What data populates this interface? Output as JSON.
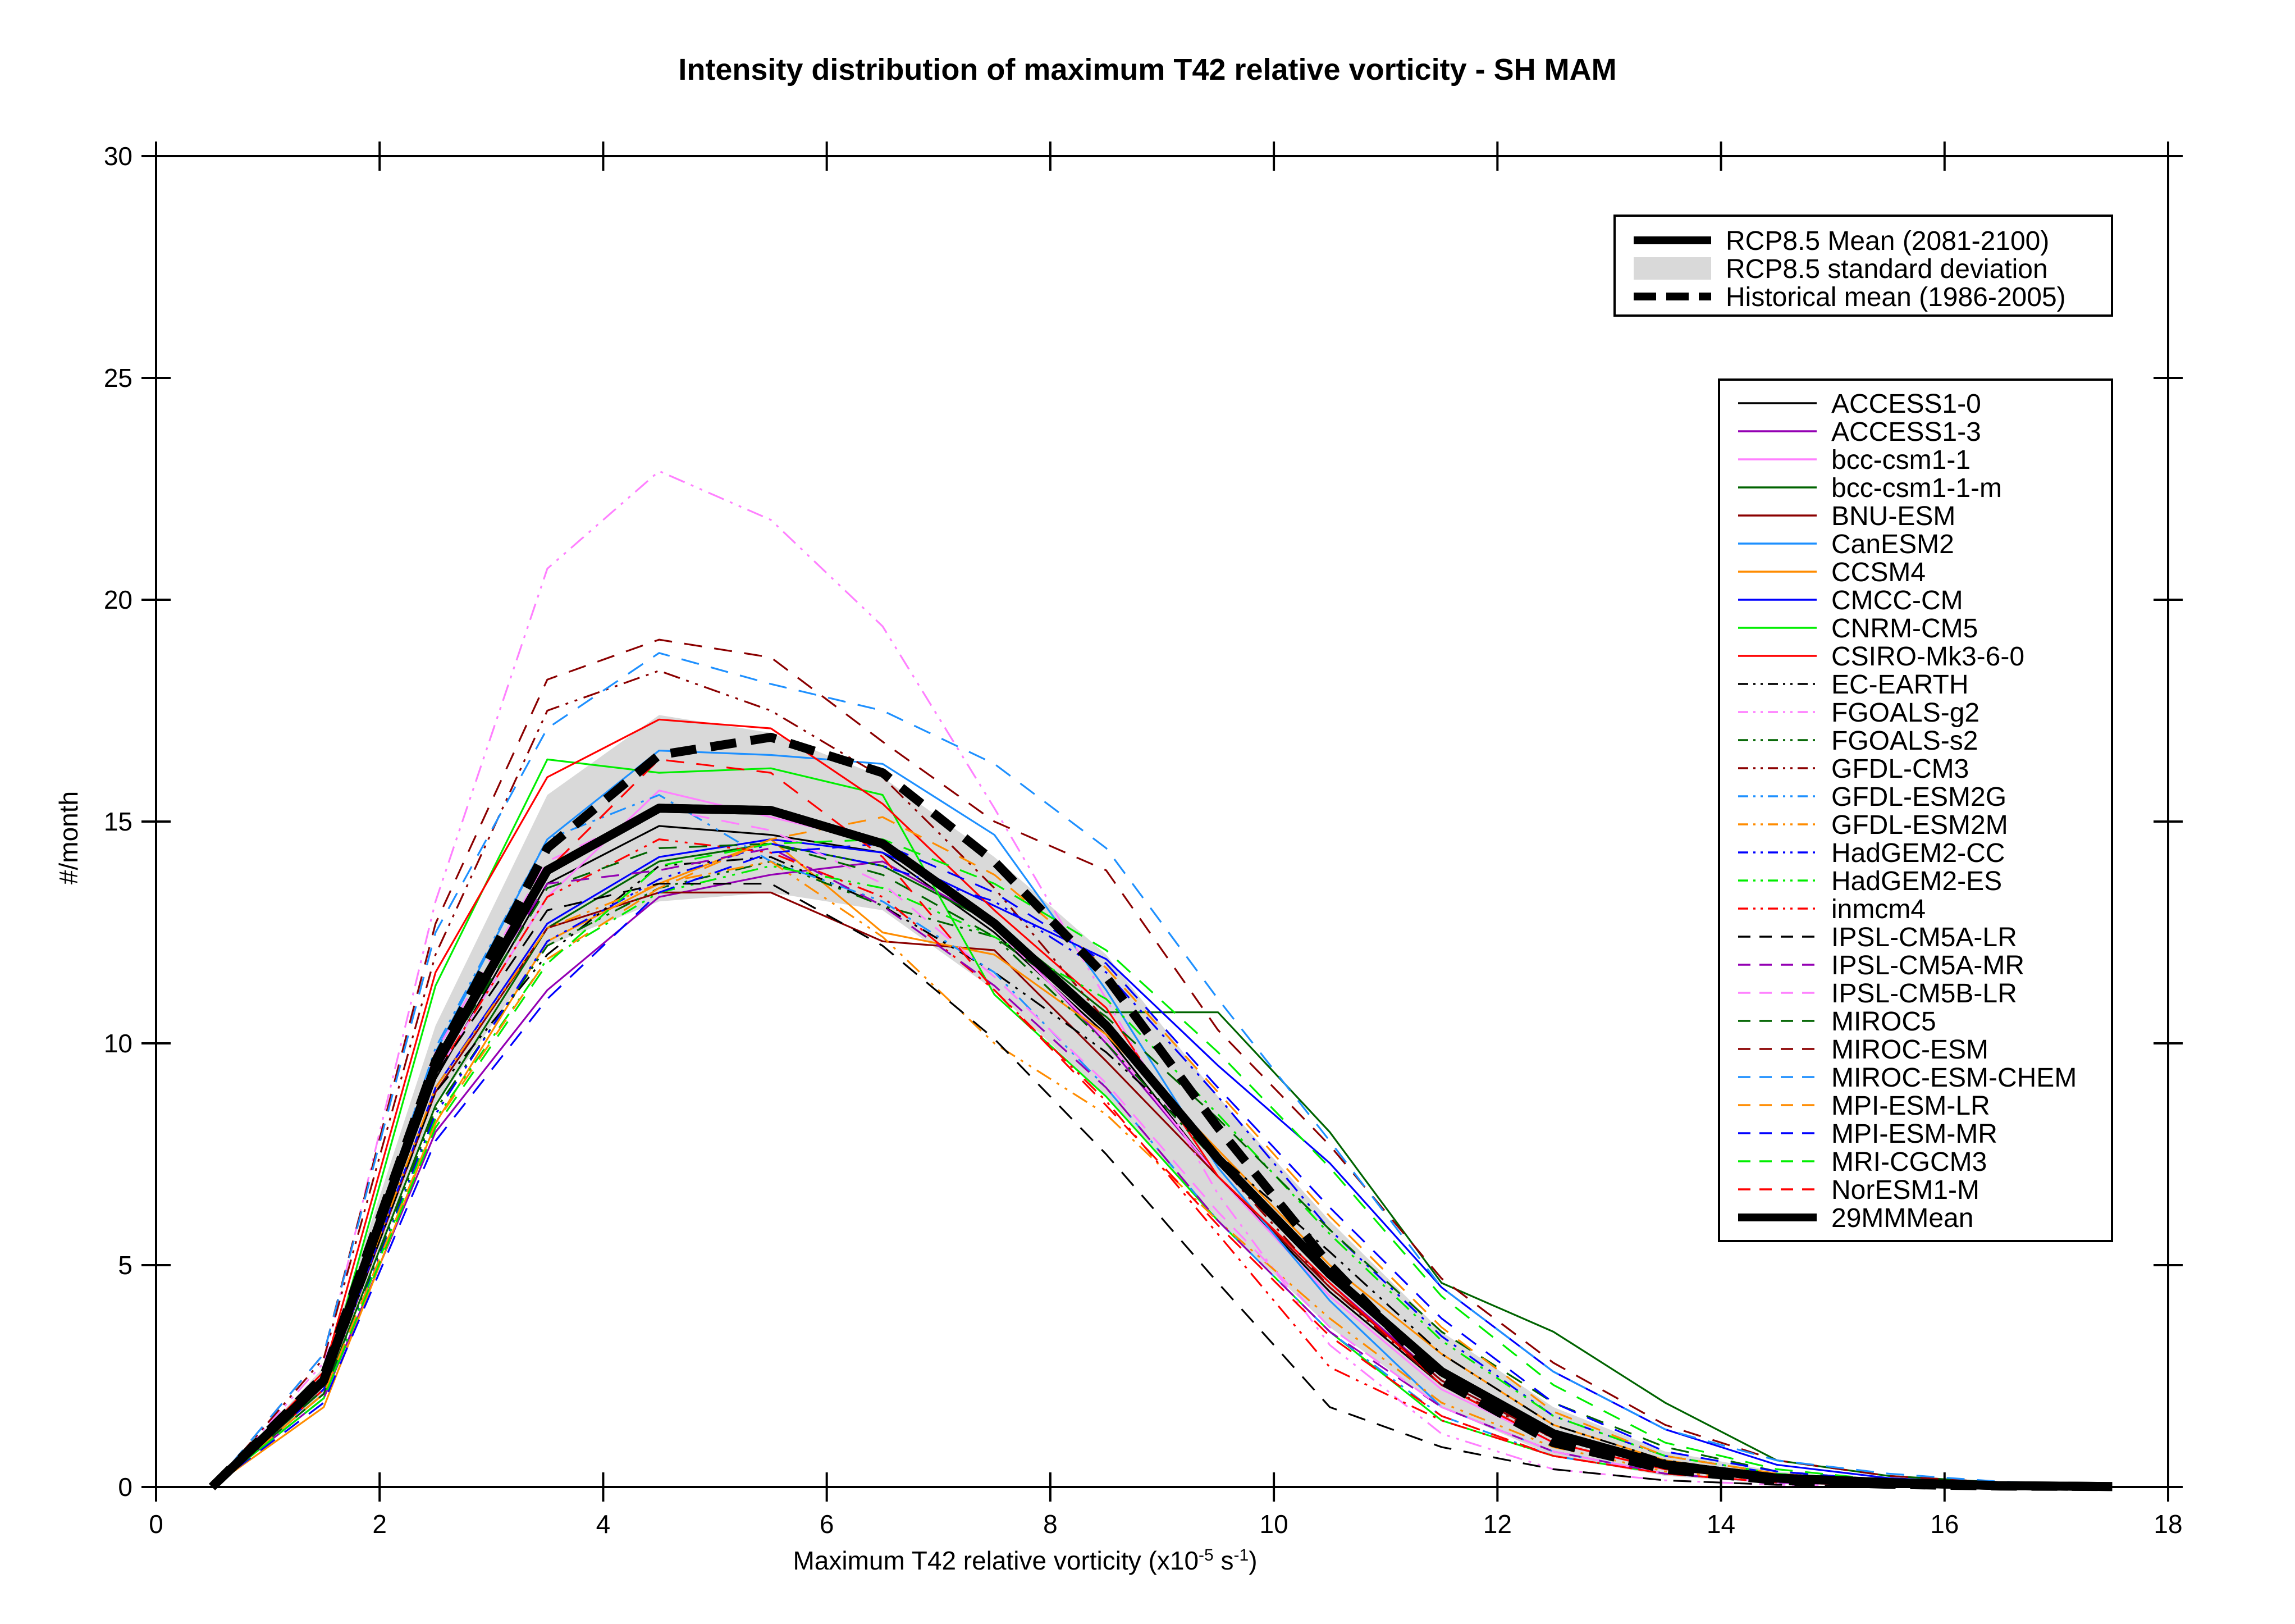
{
  "chart_data": {
    "type": "line",
    "title": "Intensity distribution of maximum T42 relative vorticity - SH MAM",
    "xlabel": "Maximum T42 relative vorticity (x10",
    "xlabel_sup1": "-5",
    "xlabel_mid": " s",
    "xlabel_sup2": "-1",
    "xlabel_end": ")",
    "ylabel": "#/month",
    "xlim": [
      0,
      18
    ],
    "ylim": [
      0,
      30
    ],
    "x_ticks": [
      0,
      2,
      4,
      6,
      8,
      10,
      12,
      14,
      16,
      18
    ],
    "y_ticks": [
      0,
      5,
      10,
      15,
      20,
      25,
      30
    ],
    "grid": false,
    "x": [
      0.5,
      1.5,
      2.5,
      3.5,
      4.5,
      5.5,
      6.5,
      7.5,
      8.5,
      9.5,
      10.5,
      11.5,
      12.5,
      13.5,
      14.5,
      15.5,
      16.5,
      17.5
    ],
    "summary_legend": [
      {
        "name": "RCP8.5 Mean (2081-2100)",
        "style": "thick-solid"
      },
      {
        "name": "RCP8.5 standard deviation",
        "style": "band"
      },
      {
        "name": "Historical mean (1986-2005)",
        "style": "thick-dashed"
      }
    ],
    "rcp85_mean": [
      0,
      2.4,
      9.5,
      13.9,
      15.3,
      15.25,
      14.5,
      12.7,
      10.4,
      7.4,
      4.8,
      2.6,
      1.2,
      0.5,
      0.2,
      0.1,
      0.03,
      0.01
    ],
    "rcp85_std_upper": [
      0,
      2.7,
      10.4,
      15.6,
      17.4,
      17.0,
      16.0,
      14.2,
      12.0,
      8.8,
      6.0,
      3.5,
      1.8,
      0.8,
      0.35,
      0.15,
      0.06,
      0.02
    ],
    "rcp85_std_lower": [
      0,
      2.1,
      8.6,
      12.2,
      13.2,
      13.4,
      13.0,
      11.2,
      8.8,
      6.0,
      3.6,
      1.8,
      0.7,
      0.25,
      0.08,
      0.03,
      0.01,
      0.0
    ],
    "historical_mean": [
      0,
      2.5,
      9.6,
      14.4,
      16.5,
      16.9,
      16.1,
      14.1,
      11.5,
      8.1,
      5.0,
      2.4,
      1.0,
      0.4,
      0.15,
      0.06,
      0.02,
      0.01
    ],
    "series": [
      {
        "name": "ACCESS1-0",
        "color": "#000000",
        "dash": "solid",
        "values": [
          0,
          2.3,
          9.2,
          13.6,
          14.9,
          14.7,
          14.3,
          12.5,
          10.2,
          7.0,
          4.4,
          2.3,
          1.0,
          0.4,
          0.15,
          0.06,
          0.02,
          0.01
        ]
      },
      {
        "name": "ACCESS1-3",
        "color": "#9400b3",
        "dash": "solid",
        "values": [
          0,
          2.0,
          8.0,
          11.2,
          13.3,
          13.8,
          14.1,
          12.7,
          10.0,
          7.0,
          4.6,
          2.4,
          1.1,
          0.5,
          0.2,
          0.08,
          0.03,
          0.01
        ]
      },
      {
        "name": "bcc-csm1-1",
        "color": "#ff80ff",
        "dash": "solid",
        "values": [
          0,
          2.4,
          9.3,
          13.3,
          15.7,
          15.1,
          14.5,
          12.6,
          10.1,
          7.0,
          4.3,
          2.2,
          1.0,
          0.4,
          0.15,
          0.06,
          0.02,
          0.01
        ]
      },
      {
        "name": "bcc-csm1-1-m",
        "color": "#006400",
        "dash": "solid",
        "values": [
          0,
          2.1,
          8.6,
          12.6,
          14.1,
          14.5,
          14.0,
          12.7,
          10.7,
          10.7,
          8.0,
          4.6,
          3.5,
          1.9,
          0.6,
          0.25,
          0.1,
          0.03
        ]
      },
      {
        "name": "BNU-ESM",
        "color": "#8b0000",
        "dash": "solid",
        "values": [
          0,
          2.2,
          8.9,
          12.6,
          13.4,
          13.4,
          12.3,
          12.1,
          9.6,
          7.0,
          4.5,
          2.4,
          1.1,
          0.5,
          0.2,
          0.08,
          0.03,
          0.01
        ]
      },
      {
        "name": "CanESM2",
        "color": "#1e90ff",
        "dash": "solid",
        "values": [
          0,
          2.4,
          9.8,
          14.6,
          16.6,
          16.5,
          16.3,
          14.7,
          11.2,
          7.2,
          4.2,
          1.8,
          0.8,
          0.3,
          0.1,
          0.04,
          0.01,
          0.0
        ]
      },
      {
        "name": "CCSM4",
        "color": "#ff8c00",
        "dash": "solid",
        "values": [
          0,
          1.8,
          8.2,
          12.3,
          13.6,
          14.6,
          12.5,
          12.0,
          10.2,
          7.6,
          5.0,
          3.0,
          1.4,
          0.6,
          0.25,
          0.1,
          0.04,
          0.01
        ]
      },
      {
        "name": "CMCC-CM",
        "color": "#0000ff",
        "dash": "solid",
        "values": [
          0,
          2.2,
          9.0,
          12.7,
          14.2,
          14.6,
          14.3,
          13.1,
          11.9,
          9.5,
          7.3,
          4.5,
          2.6,
          1.3,
          0.5,
          0.2,
          0.08,
          0.03
        ]
      },
      {
        "name": "CNRM-CM5",
        "color": "#00ee00",
        "dash": "solid",
        "values": [
          0,
          2.3,
          11.3,
          16.4,
          16.1,
          16.2,
          15.6,
          11.1,
          8.8,
          6.0,
          3.5,
          1.5,
          0.7,
          0.3,
          0.1,
          0.04,
          0.01,
          0.0
        ]
      },
      {
        "name": "CSIRO-Mk3-6-0",
        "color": "#ff0000",
        "dash": "solid",
        "values": [
          0,
          2.6,
          11.6,
          16.0,
          17.3,
          17.1,
          15.4,
          13.0,
          10.8,
          7.0,
          4.6,
          2.3,
          1.0,
          0.4,
          0.15,
          0.06,
          0.02,
          0.01
        ]
      },
      {
        "name": "EC-EARTH",
        "color": "#000000",
        "dash": "dashdotdot",
        "values": [
          0,
          2.2,
          8.9,
          12.0,
          14.0,
          14.2,
          13.1,
          11.6,
          9.8,
          7.5,
          5.3,
          3.0,
          1.4,
          0.6,
          0.25,
          0.1,
          0.04,
          0.01
        ]
      },
      {
        "name": "FGOALS-g2",
        "color": "#ff80ff",
        "dash": "dashdotdot",
        "values": [
          0,
          2.8,
          13.2,
          20.7,
          22.9,
          21.8,
          19.4,
          15.3,
          11.0,
          6.6,
          3.2,
          1.2,
          0.4,
          0.15,
          0.05,
          0.02,
          0.01,
          0.0
        ]
      },
      {
        "name": "FGOALS-s2",
        "color": "#006400",
        "dash": "dashdotdot",
        "values": [
          0,
          2.1,
          8.5,
          12.2,
          13.5,
          14.1,
          13.1,
          12.4,
          10.0,
          7.3,
          4.8,
          2.5,
          1.2,
          0.5,
          0.2,
          0.08,
          0.03,
          0.01
        ]
      },
      {
        "name": "GFDL-CM3",
        "color": "#8b0000",
        "dash": "dashdotdot",
        "values": [
          0,
          2.9,
          12.0,
          17.5,
          18.4,
          17.5,
          16.0,
          13.5,
          10.5,
          7.3,
          4.5,
          2.3,
          1.1,
          0.5,
          0.2,
          0.08,
          0.03,
          0.01
        ]
      },
      {
        "name": "GFDL-ESM2G",
        "color": "#1e90ff",
        "dash": "dashdotdot",
        "values": [
          0,
          2.3,
          9.9,
          14.6,
          15.6,
          14.1,
          13.2,
          11.6,
          9.0,
          6.0,
          3.5,
          1.6,
          0.7,
          0.3,
          0.1,
          0.04,
          0.01,
          0.0
        ]
      },
      {
        "name": "GFDL-ESM2M",
        "color": "#ff8c00",
        "dash": "dashdotdot",
        "values": [
          0,
          2.3,
          9.0,
          12.6,
          13.6,
          14.1,
          12.4,
          10.0,
          8.4,
          6.0,
          3.8,
          1.9,
          0.9,
          0.35,
          0.12,
          0.05,
          0.02,
          0.0
        ]
      },
      {
        "name": "HadGEM2-CC",
        "color": "#0000ff",
        "dash": "dashdotdot",
        "values": [
          0,
          2.0,
          8.4,
          12.3,
          13.7,
          14.5,
          14.0,
          13.2,
          11.6,
          8.8,
          5.8,
          3.4,
          1.6,
          0.7,
          0.3,
          0.12,
          0.05,
          0.02
        ]
      },
      {
        "name": "HadGEM2-ES",
        "color": "#00ee00",
        "dash": "dashdotdot",
        "values": [
          0,
          2.0,
          8.3,
          11.9,
          13.4,
          14.0,
          13.5,
          12.4,
          11.0,
          8.4,
          5.7,
          3.3,
          1.6,
          0.7,
          0.3,
          0.12,
          0.05,
          0.02
        ]
      },
      {
        "name": "inmcm4",
        "color": "#ff0000",
        "dash": "dashdotdot",
        "values": [
          0,
          2.2,
          9.3,
          13.3,
          14.6,
          14.3,
          13.3,
          11.2,
          8.7,
          5.7,
          2.7,
          1.5,
          0.7,
          0.3,
          0.1,
          0.04,
          0.01,
          0.0
        ]
      },
      {
        "name": "IPSL-CM5A-LR",
        "color": "#000000",
        "dash": "dashed",
        "values": [
          0,
          2.3,
          9.3,
          13.0,
          13.6,
          13.6,
          12.2,
          10.1,
          7.5,
          4.6,
          1.8,
          0.9,
          0.4,
          0.15,
          0.05,
          0.02,
          0.01,
          0.0
        ]
      },
      {
        "name": "IPSL-CM5A-MR",
        "color": "#9400b3",
        "dash": "dashed",
        "values": [
          0,
          2.3,
          9.6,
          13.6,
          13.9,
          14.4,
          13.1,
          11.3,
          9.0,
          6.0,
          3.5,
          1.8,
          0.8,
          0.3,
          0.1,
          0.04,
          0.01,
          0.0
        ]
      },
      {
        "name": "IPSL-CM5B-LR",
        "color": "#ff80ff",
        "dash": "dashed",
        "values": [
          0,
          2.4,
          9.8,
          14.1,
          15.3,
          14.8,
          13.6,
          11.5,
          9.1,
          6.2,
          3.6,
          1.8,
          0.8,
          0.3,
          0.1,
          0.04,
          0.01,
          0.0
        ]
      },
      {
        "name": "MIROC5",
        "color": "#006400",
        "dash": "dashed",
        "values": [
          0,
          2.2,
          9.4,
          13.5,
          14.4,
          14.5,
          13.8,
          12.4,
          10.6,
          8.3,
          5.8,
          3.5,
          1.9,
          0.9,
          0.35,
          0.15,
          0.06,
          0.02
        ]
      },
      {
        "name": "MIROC-ESM",
        "color": "#8b0000",
        "dash": "dashed",
        "values": [
          0,
          3.0,
          12.7,
          18.2,
          19.1,
          18.7,
          16.8,
          15.0,
          13.9,
          10.3,
          7.7,
          4.7,
          2.8,
          1.4,
          0.6,
          0.25,
          0.1,
          0.03
        ]
      },
      {
        "name": "MIROC-ESM-CHEM",
        "color": "#1e90ff",
        "dash": "dashed",
        "values": [
          0,
          3.0,
          12.5,
          17.1,
          18.8,
          18.1,
          17.5,
          16.3,
          14.4,
          11.0,
          7.8,
          4.5,
          2.6,
          1.3,
          0.6,
          0.3,
          0.12,
          0.04
        ]
      },
      {
        "name": "MPI-ESM-LR",
        "color": "#ff8c00",
        "dash": "dashed",
        "values": [
          0,
          2.1,
          8.2,
          11.9,
          13.5,
          14.6,
          15.1,
          13.8,
          11.7,
          8.9,
          6.1,
          3.6,
          1.7,
          0.7,
          0.3,
          0.12,
          0.05,
          0.02
        ]
      },
      {
        "name": "MPI-ESM-MR",
        "color": "#0000ff",
        "dash": "dashed",
        "values": [
          0,
          1.9,
          7.8,
          11.0,
          13.4,
          14.3,
          14.5,
          13.4,
          11.8,
          9.0,
          6.3,
          3.8,
          1.9,
          0.8,
          0.35,
          0.15,
          0.06,
          0.02
        ]
      },
      {
        "name": "MRI-CGCM3",
        "color": "#00ee00",
        "dash": "dashed",
        "values": [
          0,
          2.0,
          8.1,
          11.8,
          14.0,
          14.5,
          14.6,
          13.6,
          12.1,
          9.8,
          7.2,
          4.3,
          2.3,
          1.0,
          0.4,
          0.15,
          0.06,
          0.02
        ]
      },
      {
        "name": "NorESM1-M",
        "color": "#ff0000",
        "dash": "dashed",
        "values": [
          0,
          2.3,
          9.5,
          13.9,
          16.4,
          16.1,
          14.2,
          11.2,
          8.6,
          5.9,
          3.4,
          1.6,
          0.7,
          0.3,
          0.1,
          0.04,
          0.01,
          0.0
        ]
      },
      {
        "name": "29MMMean",
        "color": "#000000",
        "dash": "thick",
        "values": [
          0,
          2.4,
          9.5,
          13.9,
          15.3,
          15.25,
          14.5,
          12.7,
          10.4,
          7.4,
          4.8,
          2.6,
          1.2,
          0.5,
          0.2,
          0.1,
          0.03,
          0.01
        ]
      }
    ]
  }
}
